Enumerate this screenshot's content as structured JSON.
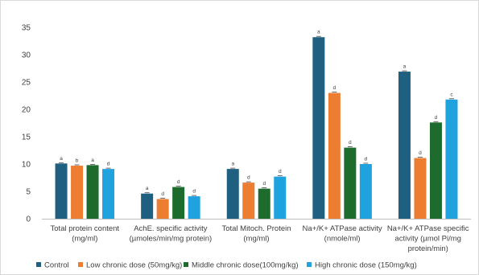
{
  "chart_data": {
    "type": "bar",
    "categories": [
      [
        "Total protein content",
        "(mg/ml)"
      ],
      [
        "AchE. specific activity",
        "(µmoles/min/mg protein)"
      ],
      [
        "Total Mitoch. Protein",
        "(mg/ml)"
      ],
      [
        "Na+/K+ ATPase activity",
        "(nmole/ml)"
      ],
      [
        "Na+/K+ ATPase specific",
        "activity (µmol Pi/mg",
        "protein/min)"
      ]
    ],
    "series": [
      {
        "name": "Control",
        "color": "#1f5f7f",
        "values": [
          10.1,
          4.6,
          9.1,
          33.2,
          26.9
        ],
        "labels": [
          "a",
          "a",
          "a",
          "a",
          "a"
        ]
      },
      {
        "name": "Low chronic dose (50mg/kg)",
        "color": "#ed7d31",
        "values": [
          9.7,
          3.6,
          6.6,
          23.0,
          11.1
        ],
        "labels": [
          "b",
          "d",
          "d",
          "d",
          "d"
        ]
      },
      {
        "name": "Middle chronic dose(100mg/kg)",
        "color": "#1e6b2e",
        "values": [
          9.8,
          5.8,
          5.5,
          13.0,
          17.6
        ],
        "labels": [
          "a",
          "d",
          "d",
          "d",
          "d"
        ]
      },
      {
        "name": "High chronic dose (150mg/kg)",
        "color": "#1fa2de",
        "values": [
          9.1,
          4.1,
          7.7,
          10.0,
          21.8
        ],
        "labels": [
          "d",
          "d",
          "d",
          "d",
          "c"
        ]
      }
    ],
    "ylim": [
      0,
      35
    ],
    "yticks": [
      0,
      5,
      10,
      15,
      20,
      25,
      30,
      35
    ],
    "grid": false,
    "legend_position": "bottom"
  }
}
